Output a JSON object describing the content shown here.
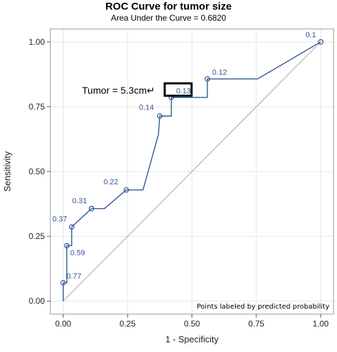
{
  "chart_data": {
    "type": "line",
    "title": "ROC Curve for tumor size",
    "subtitle": "Area Under the Curve = 0.6820",
    "xlabel": "1 - Specificity",
    "ylabel": "Sensitivity",
    "xlim": [
      -0.05,
      1.05
    ],
    "ylim": [
      -0.05,
      1.05
    ],
    "xticks": [
      "0.00",
      "0.25",
      "0.50",
      "0.75",
      "1.00"
    ],
    "yticks": [
      "0.00",
      "0.25",
      "0.50",
      "0.75",
      "1.00"
    ],
    "grid": true,
    "curve": {
      "x": [
        0.0,
        0.0,
        0.014,
        0.014,
        0.033,
        0.033,
        0.11,
        0.16,
        0.245,
        0.31,
        0.37,
        0.375,
        0.42,
        0.42,
        0.56,
        0.56,
        0.755,
        1.0
      ],
      "y": [
        0.0,
        0.071,
        0.071,
        0.214,
        0.214,
        0.286,
        0.357,
        0.357,
        0.429,
        0.429,
        0.643,
        0.714,
        0.714,
        0.786,
        0.786,
        0.857,
        0.857,
        1.0
      ]
    },
    "labeled_points": [
      {
        "x": 0.0,
        "y": 0.071,
        "label": "0.77"
      },
      {
        "x": 0.014,
        "y": 0.214,
        "label": "0.59"
      },
      {
        "x": 0.033,
        "y": 0.286,
        "label": "0.37"
      },
      {
        "x": 0.11,
        "y": 0.357,
        "label": "0.31"
      },
      {
        "x": 0.245,
        "y": 0.429,
        "label": "0.22"
      },
      {
        "x": 0.375,
        "y": 0.714,
        "label": "0.14"
      },
      {
        "x": 0.42,
        "y": 0.786,
        "label": "0.13"
      },
      {
        "x": 0.56,
        "y": 0.857,
        "label": "0.12"
      },
      {
        "x": 1.0,
        "y": 1.0,
        "label": "0.1"
      }
    ],
    "reference_line": {
      "x": [
        0,
        1
      ],
      "y": [
        0,
        1
      ]
    },
    "annotation": {
      "text": "Tumor = 5.3cm↵",
      "boxed_label": "0.13"
    },
    "footnote": "Points labeled by predicted probability",
    "colors": {
      "curve": "#2f5597",
      "reference": "#a6a6a6",
      "grid": "#e4e4e4",
      "frame": "#999999"
    }
  }
}
